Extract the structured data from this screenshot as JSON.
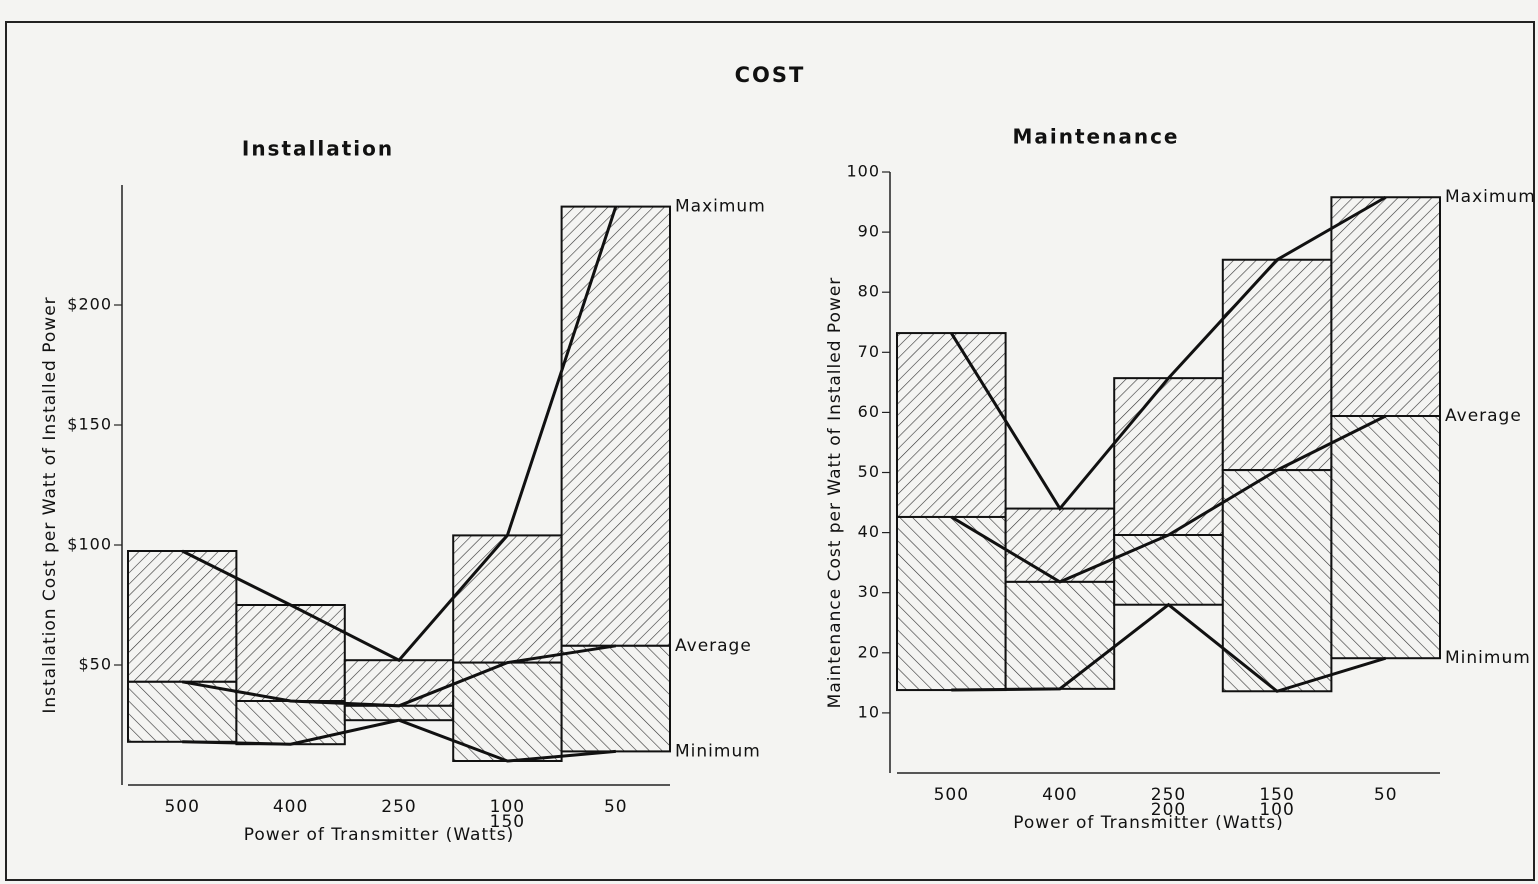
{
  "title": "COST",
  "chart_data": [
    {
      "type": "range-box",
      "title": "Installation",
      "ylabel": "Installation Cost per Watt of Installed Power",
      "xlabel": "Power of Transmitter (Watts)",
      "categories": [
        [
          "500"
        ],
        [
          "400"
        ],
        [
          "250"
        ],
        [
          "100",
          "150"
        ],
        [
          "50"
        ]
      ],
      "series": [
        {
          "name": "Maximum",
          "color": "#111111",
          "values": [
            97.5,
            75,
            52,
            104,
            241
          ]
        },
        {
          "name": "Average",
          "color": "#111111",
          "values": [
            43,
            35,
            33,
            51,
            58
          ]
        },
        {
          "name": "Minimum",
          "color": "#111111",
          "values": [
            18,
            17,
            27,
            10,
            14
          ]
        }
      ],
      "ylim": [
        0,
        250
      ],
      "yticks": [
        {
          "value": 50,
          "label": "$50"
        },
        {
          "value": 100,
          "label": "$100"
        },
        {
          "value": 150,
          "label": "$150"
        },
        {
          "value": 200,
          "label": "$200"
        }
      ]
    },
    {
      "type": "range-box",
      "title": "Maintenance",
      "ylabel": "Maintenance Cost per Watt of Installed Power",
      "xlabel": "Power of Transmitter (Watts)",
      "categories": [
        [
          "500"
        ],
        [
          "400"
        ],
        [
          "250",
          "200"
        ],
        [
          "150",
          "100"
        ],
        [
          "50"
        ]
      ],
      "series": [
        {
          "name": "Maximum",
          "color": "#111111",
          "values": [
            73.2,
            44,
            65.7,
            85.4,
            95.8
          ]
        },
        {
          "name": "Average",
          "color": "#111111",
          "values": [
            42.6,
            31.8,
            39.6,
            50.4,
            59.4
          ]
        },
        {
          "name": "Minimum",
          "color": "#111111",
          "values": [
            13.8,
            14,
            28,
            13.6,
            19.1
          ]
        }
      ],
      "ylim": [
        0,
        100
      ],
      "yticks": [
        10,
        20,
        30,
        40,
        50,
        60,
        70,
        80,
        90,
        100
      ]
    }
  ]
}
